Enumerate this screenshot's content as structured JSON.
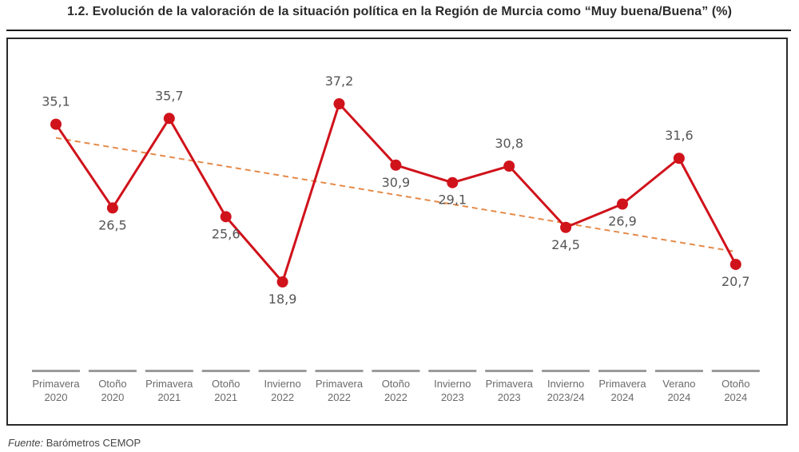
{
  "chart_data": {
    "type": "line",
    "title": "1.2. Evolución de la valoración de la situación política en la Región de Murcia como “Muy buena/Buena” (%)",
    "categories": [
      [
        "Primavera",
        "2020"
      ],
      [
        "Otoño",
        "2020"
      ],
      [
        "Primavera",
        "2021"
      ],
      [
        "Otoño",
        "2021"
      ],
      [
        "Invierno",
        "2022"
      ],
      [
        "Primavera",
        "2022"
      ],
      [
        "Otoño",
        "2022"
      ],
      [
        "Invierno",
        "2023"
      ],
      [
        "Primavera",
        "2023"
      ],
      [
        "Invierno",
        "2023/24"
      ],
      [
        "Primavera",
        "2024"
      ],
      [
        "Verano",
        "2024"
      ],
      [
        "Otoño",
        "2024"
      ]
    ],
    "series": [
      {
        "name": "Muy buena/Buena",
        "values": [
          35.1,
          26.5,
          35.7,
          25.6,
          18.9,
          37.2,
          30.9,
          29.1,
          30.8,
          24.5,
          26.9,
          31.6,
          20.7
        ],
        "labels": [
          "35,1",
          "26,5",
          "35,7",
          "25,6",
          "18,9",
          "37,2",
          "30,9",
          "29,1",
          "30,8",
          "24,5",
          "26,9",
          "31,6",
          "20,7"
        ],
        "label_side": [
          "above",
          "below",
          "above",
          "below",
          "below",
          "above",
          "below",
          "below",
          "above",
          "below",
          "below",
          "above",
          "below"
        ],
        "color": "#d0121b"
      }
    ],
    "trendline": {
      "start": 33.7,
      "end": 22.0,
      "color": "#e58a4a",
      "style": "dashed"
    },
    "ylim": [
      0,
      45
    ],
    "xlabel": "",
    "ylabel": "",
    "grid": false,
    "legend": "none"
  },
  "source": {
    "label": "Fuente:",
    "text": "Barómetros CEMOP"
  }
}
